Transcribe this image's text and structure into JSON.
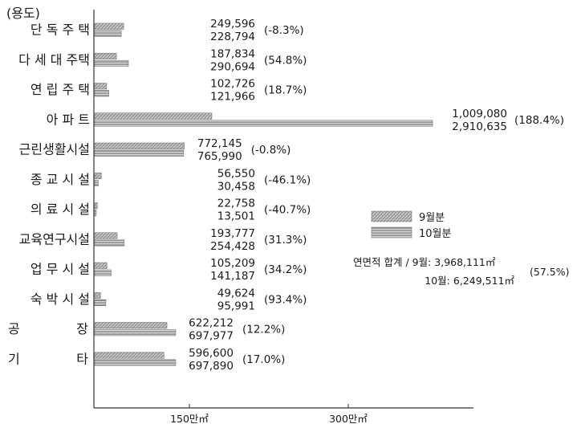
{
  "chart_data": {
    "type": "bar",
    "orientation": "horizontal",
    "title": "(용도)",
    "categories": [
      "단 독 주 택",
      "다 세 대 주택",
      "연 립 주 택",
      "아 파 트",
      "근린생활시설",
      "종 교 시 설",
      "의 료 시 설",
      "교육연구시설",
      "업 무 시 설",
      "숙 박 시 설",
      "공 장",
      "기 타"
    ],
    "series": [
      {
        "name": "9월분",
        "values": [
          249596,
          187834,
          102726,
          1009080,
          772145,
          56550,
          22758,
          193777,
          105209,
          49624,
          622212,
          596600
        ],
        "labels": [
          "249,596",
          "187,834",
          "102,726",
          "1,009,080",
          "772,145",
          "56,550",
          "22,758",
          "193,777",
          "105,209",
          "49,624",
          "622,212",
          "596,600"
        ]
      },
      {
        "name": "10월분",
        "values": [
          228794,
          290694,
          121966,
          2910635,
          765990,
          30458,
          13501,
          254428,
          141187,
          95991,
          697977,
          697890
        ],
        "labels": [
          "228,794",
          "290,694",
          "121,966",
          "2,910,635",
          "765,990",
          "30,458",
          "13,501",
          "254,428",
          "141,187",
          "95,991",
          "697,977",
          "697,890"
        ]
      }
    ],
    "change_labels": [
      "(-8.3%)",
      "(54.8%)",
      "(18.7%)",
      "(188.4%)",
      "(-0.8%)",
      "(-46.1%)",
      "(-40.7%)",
      "(31.3%)",
      "(34.2%)",
      "(93.4%)",
      "(12.2%)",
      "(17.0%)"
    ],
    "x_ticks": [
      {
        "value": 1500000,
        "label": "150만㎡"
      },
      {
        "value": 3000000,
        "label": "300만㎡"
      }
    ],
    "xlim": [
      0,
      3000000
    ],
    "legend": {
      "position": "right-middle",
      "items": [
        "9월분",
        "10월분"
      ]
    },
    "annotation": {
      "line1": "연면적 합계 / 9월: 3,968,111㎡",
      "line2": "10월: 6,249,511㎡",
      "change": "(57.5%)"
    },
    "grid": false
  }
}
